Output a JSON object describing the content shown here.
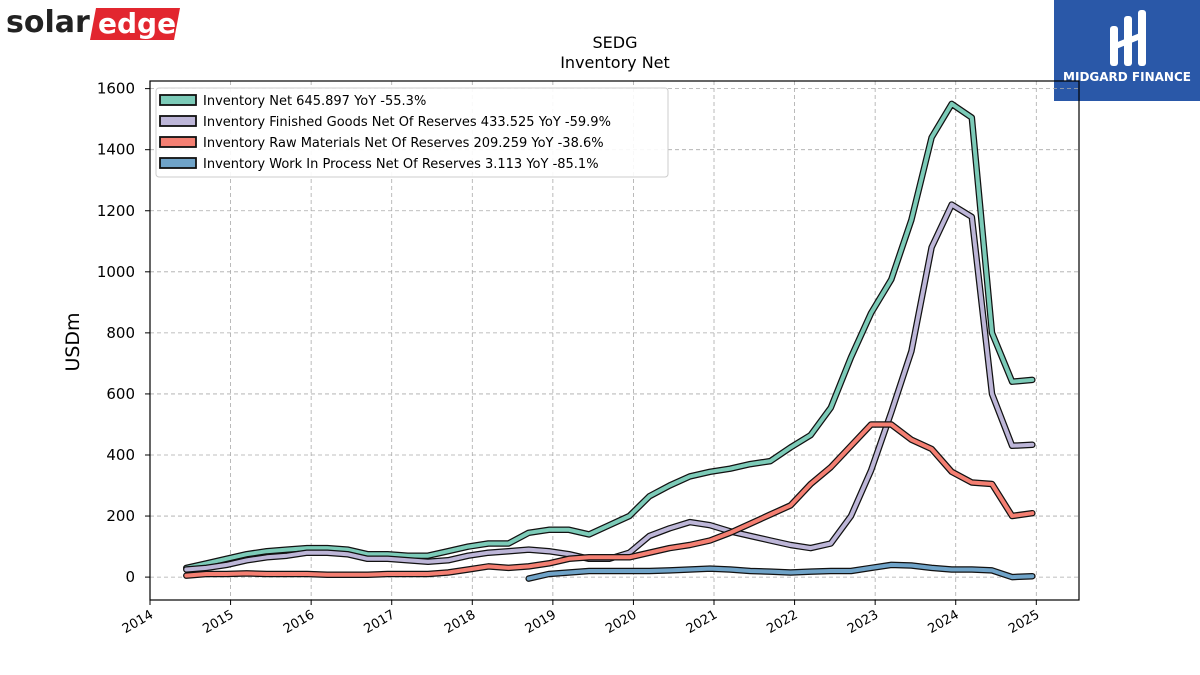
{
  "branding": {
    "left_logo_text_a": "solar",
    "left_logo_text_b": "edge",
    "left_logo_color": "#e2262f",
    "right_logo_text": "MIDGARD FINANCE",
    "right_logo_bg": "#2a58a8"
  },
  "chart_data": {
    "type": "line",
    "title": "SEDG",
    "subtitle": "Inventory Net",
    "xlabel": "",
    "ylabel": "USDm",
    "ylim": [
      -75,
      1625
    ],
    "xlim": [
      2014.0,
      2025.53
    ],
    "yticks": [
      0,
      200,
      400,
      600,
      800,
      1000,
      1200,
      1400,
      1600
    ],
    "xticks": [
      2014,
      2015,
      2016,
      2017,
      2018,
      2019,
      2020,
      2021,
      2022,
      2023,
      2024,
      2025
    ],
    "grid": true,
    "legend_position": "top-left",
    "series": [
      {
        "name": "Inventory Net",
        "legend": "Inventory Net  645.897 YoY -55.3%",
        "color": "#7ccbb8",
        "x": [
          2014.45,
          2014.7,
          2014.95,
          2015.2,
          2015.45,
          2015.7,
          2015.95,
          2016.2,
          2016.45,
          2016.7,
          2016.95,
          2017.2,
          2017.45,
          2017.7,
          2017.95,
          2018.2,
          2018.45,
          2018.7,
          2018.95,
          2019.2,
          2019.45,
          2019.7,
          2019.95,
          2020.2,
          2020.45,
          2020.7,
          2020.95,
          2021.2,
          2021.45,
          2021.7,
          2021.95,
          2022.2,
          2022.45,
          2022.7,
          2022.95,
          2023.2,
          2023.45,
          2023.7,
          2023.95,
          2024.2,
          2024.45,
          2024.7,
          2024.95
        ],
        "y": [
          30,
          45,
          60,
          75,
          85,
          90,
          95,
          95,
          90,
          75,
          75,
          70,
          70,
          85,
          100,
          110,
          110,
          145,
          155,
          155,
          140,
          170,
          200,
          265,
          300,
          330,
          345,
          355,
          370,
          380,
          425,
          465,
          555,
          720,
          865,
          975,
          1170,
          1440,
          1550,
          1505,
          800,
          640,
          645.9
        ]
      },
      {
        "name": "Inventory Finished Goods Net Of Reserves",
        "legend": "Inventory Finished Goods Net Of Reserves  433.525 YoY -59.9%",
        "color": "#bdb6d8",
        "x": [
          2014.45,
          2014.7,
          2014.95,
          2015.2,
          2015.45,
          2015.7,
          2015.95,
          2016.2,
          2016.45,
          2016.7,
          2016.95,
          2017.2,
          2017.45,
          2017.7,
          2017.95,
          2018.2,
          2018.45,
          2018.7,
          2018.95,
          2019.2,
          2019.45,
          2019.7,
          2019.95,
          2020.2,
          2020.45,
          2020.7,
          2020.95,
          2021.2,
          2021.45,
          2021.7,
          2021.95,
          2022.2,
          2022.45,
          2022.7,
          2022.95,
          2023.2,
          2023.45,
          2023.7,
          2023.95,
          2024.2,
          2024.45,
          2024.7,
          2024.95
        ],
        "y": [
          25,
          30,
          40,
          55,
          65,
          70,
          80,
          80,
          75,
          60,
          60,
          55,
          50,
          55,
          70,
          80,
          85,
          90,
          85,
          75,
          60,
          60,
          80,
          135,
          160,
          180,
          170,
          150,
          135,
          120,
          105,
          95,
          110,
          200,
          350,
          540,
          740,
          1080,
          1220,
          1180,
          600,
          430,
          433.5
        ]
      },
      {
        "name": "Inventory Raw Materials Net Of Reserves",
        "legend": "Inventory Raw Materials Net Of Reserves  209.259 YoY -38.6%",
        "color": "#f47f72",
        "x": [
          2014.45,
          2014.7,
          2014.95,
          2015.2,
          2015.45,
          2015.7,
          2015.95,
          2016.2,
          2016.45,
          2016.7,
          2016.95,
          2017.2,
          2017.45,
          2017.7,
          2017.95,
          2018.2,
          2018.45,
          2018.7,
          2018.95,
          2019.2,
          2019.45,
          2019.7,
          2019.95,
          2020.2,
          2020.45,
          2020.7,
          2020.95,
          2021.2,
          2021.45,
          2021.7,
          2021.95,
          2022.2,
          2022.45,
          2022.7,
          2022.95,
          2023.2,
          2023.45,
          2023.7,
          2023.95,
          2024.2,
          2024.45,
          2024.7,
          2024.95
        ],
        "y": [
          5,
          10,
          10,
          12,
          10,
          10,
          10,
          8,
          8,
          8,
          10,
          10,
          10,
          15,
          25,
          35,
          30,
          35,
          45,
          60,
          65,
          65,
          65,
          80,
          95,
          105,
          120,
          145,
          175,
          205,
          235,
          305,
          360,
          430,
          500,
          500,
          450,
          420,
          345,
          310,
          305,
          200,
          209.3
        ]
      },
      {
        "name": "Inventory Work In Process Net Of Reserves",
        "legend": "Inventory Work In Process Net Of Reserves  3.113 YoY -85.1%",
        "color": "#6fa3c8",
        "x": [
          2018.7,
          2018.95,
          2019.2,
          2019.45,
          2019.7,
          2019.95,
          2020.2,
          2020.45,
          2020.7,
          2020.95,
          2021.2,
          2021.45,
          2021.7,
          2021.95,
          2022.2,
          2022.45,
          2022.7,
          2022.95,
          2023.2,
          2023.45,
          2023.7,
          2023.95,
          2024.2,
          2024.45,
          2024.7,
          2024.95
        ],
        "y": [
          -5,
          10,
          15,
          20,
          20,
          20,
          20,
          22,
          25,
          28,
          25,
          20,
          18,
          15,
          18,
          20,
          20,
          30,
          40,
          38,
          30,
          25,
          25,
          22,
          0,
          3.1
        ]
      }
    ]
  }
}
